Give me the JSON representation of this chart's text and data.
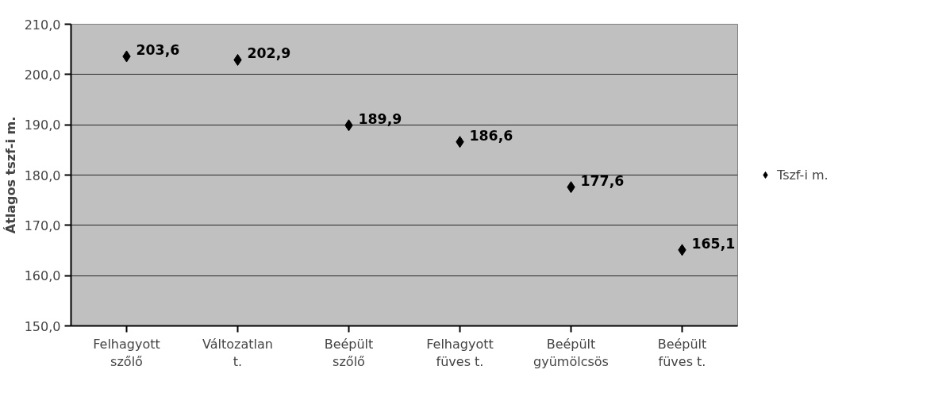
{
  "chart_data": {
    "type": "scatter",
    "ylabel": "Átlagos tszf-i m.",
    "categories": [
      "Felhagyott szőlő",
      "Változatlan t.",
      "Beépült szőlő",
      "Felhagyott füves t.",
      "Beépült gyümölcsös",
      "Beépült füves t."
    ],
    "series": [
      {
        "name": "Tszf-i m.",
        "color": "#000000",
        "values": [
          203.6,
          202.9,
          189.9,
          186.6,
          177.6,
          165.1
        ],
        "value_labels": [
          "203,6",
          "202,9",
          "189,9",
          "186,6",
          "177,6",
          "165,1"
        ]
      }
    ],
    "ylim": [
      150,
      210
    ],
    "yticks": [
      {
        "value": 150,
        "label": "150,0"
      },
      {
        "value": 160,
        "label": "160,0"
      },
      {
        "value": 170,
        "label": "170,0"
      },
      {
        "value": 180,
        "label": "180,0"
      },
      {
        "value": 190,
        "label": "190,0"
      },
      {
        "value": 200,
        "label": "200,0"
      },
      {
        "value": 210,
        "label": "210,0"
      }
    ],
    "grid": "y",
    "legend": "right",
    "marker": "diamond"
  }
}
